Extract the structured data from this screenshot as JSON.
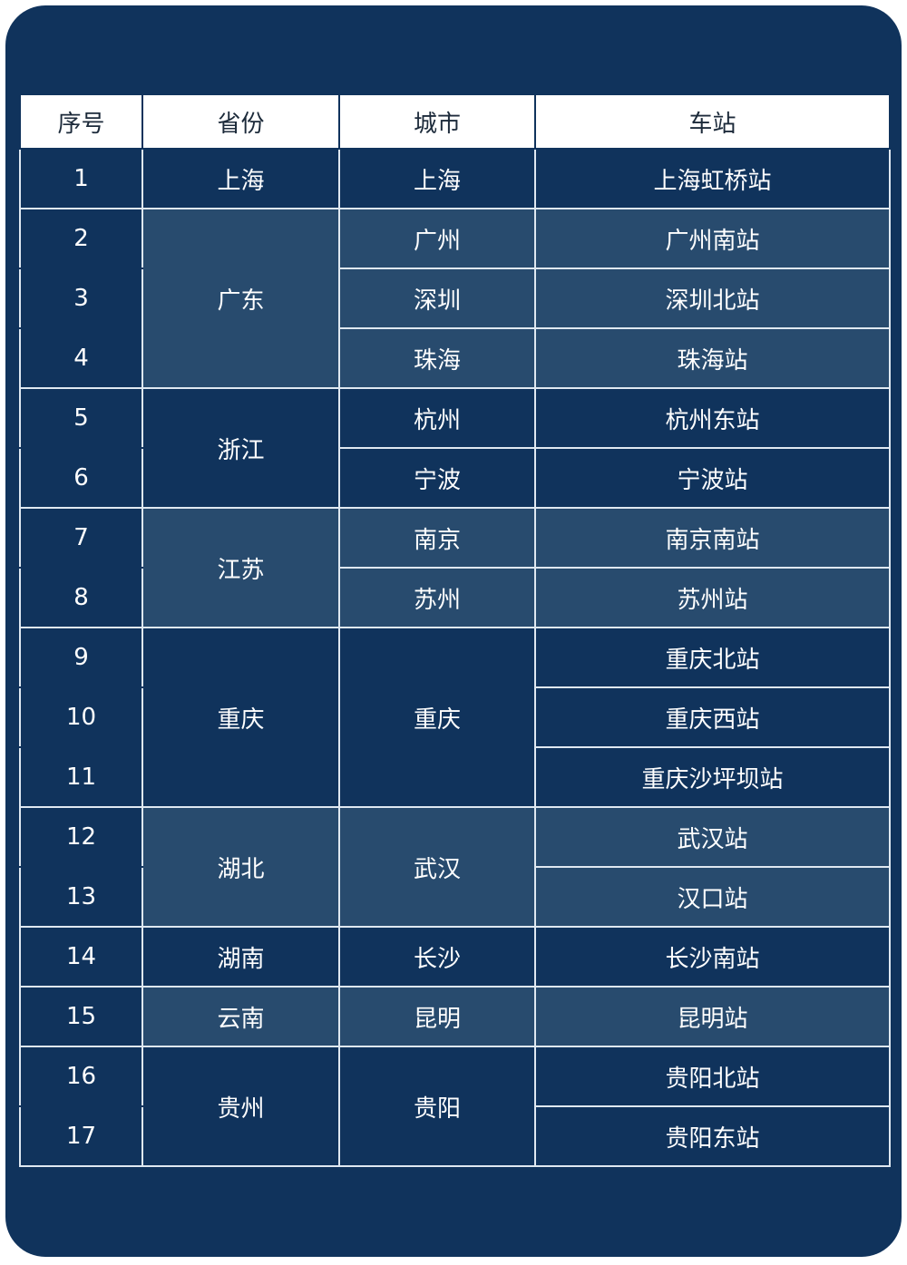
{
  "headers": [
    "序号",
    "省份",
    "城市",
    "车站"
  ],
  "colors": {
    "card": "#10335c",
    "dark_cell": "#10335c",
    "light_cell": "#284b6e",
    "grid": "#dfe8f1"
  },
  "provinces": [
    {
      "name": "上海",
      "shade": "dark",
      "cities": [
        {
          "name": "上海",
          "shade": "dark",
          "stations": [
            "上海虹桥站"
          ]
        }
      ]
    },
    {
      "name": "广东",
      "shade": "light",
      "cities": [
        {
          "name": "广州",
          "shade": "light",
          "stations": [
            "广州南站"
          ]
        },
        {
          "name": "深圳",
          "shade": "light",
          "stations": [
            "深圳北站"
          ]
        },
        {
          "name": "珠海",
          "shade": "light",
          "stations": [
            "珠海站"
          ]
        }
      ]
    },
    {
      "name": "浙江",
      "shade": "dark",
      "cities": [
        {
          "name": "杭州",
          "shade": "dark",
          "stations": [
            "杭州东站"
          ]
        },
        {
          "name": "宁波",
          "shade": "dark",
          "stations": [
            "宁波站"
          ]
        }
      ]
    },
    {
      "name": "江苏",
      "shade": "light",
      "cities": [
        {
          "name": "南京",
          "shade": "light",
          "stations": [
            "南京南站"
          ]
        },
        {
          "name": "苏州",
          "shade": "light",
          "stations": [
            "苏州站"
          ]
        }
      ]
    },
    {
      "name": "重庆",
      "shade": "dark",
      "cities": [
        {
          "name": "重庆",
          "shade": "dark",
          "stations": [
            "重庆北站",
            "重庆西站",
            "重庆沙坪坝站"
          ]
        }
      ]
    },
    {
      "name": "湖北",
      "shade": "light",
      "cities": [
        {
          "name": "武汉",
          "shade": "light",
          "stations": [
            "武汉站",
            "汉口站"
          ]
        }
      ]
    },
    {
      "name": "湖南",
      "shade": "dark",
      "cities": [
        {
          "name": "长沙",
          "shade": "dark",
          "stations": [
            "长沙南站"
          ]
        }
      ]
    },
    {
      "name": "云南",
      "shade": "light",
      "cities": [
        {
          "name": "昆明",
          "shade": "light",
          "stations": [
            "昆明站"
          ]
        }
      ]
    },
    {
      "name": "贵州",
      "shade": "dark",
      "cities": [
        {
          "name": "贵阳",
          "shade": "dark",
          "stations": [
            "贵阳北站",
            "贵阳东站"
          ]
        }
      ]
    }
  ],
  "numbers": [
    "1",
    "2",
    "3",
    "4",
    "5",
    "6",
    "7",
    "8",
    "9",
    "10",
    "11",
    "12",
    "13",
    "14",
    "15",
    "16",
    "17"
  ]
}
